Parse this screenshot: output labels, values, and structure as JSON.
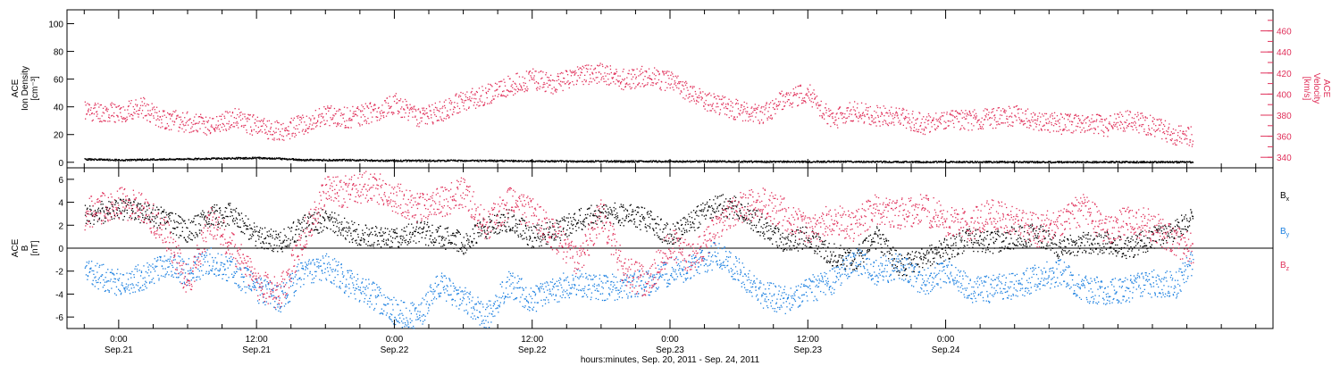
{
  "colors": {
    "density": "#000000",
    "velocity": "#e0305a",
    "bx": "#000000",
    "by": "#1a7fe0",
    "bz": "#e0305a",
    "axis": "#000000"
  },
  "chart_data": [
    {
      "type": "scatter",
      "panel": "top",
      "left_axis": {
        "label_lines": [
          "ACE",
          "Ion Density",
          "[cm⁻³]"
        ],
        "ylim": [
          -4,
          110
        ],
        "ticks": [
          0,
          20,
          40,
          60,
          80,
          100
        ],
        "tick_labels": [
          "0",
          "20",
          "40",
          "60",
          "80",
          "100"
        ]
      },
      "right_axis": {
        "label_lines": [
          "ACE",
          "Velocity",
          "[km/s]"
        ],
        "ylim": [
          330,
          480
        ],
        "ticks": [
          340,
          360,
          380,
          400,
          420,
          440,
          460
        ],
        "tick_labels": [
          "340",
          "360",
          "380",
          "400",
          "420",
          "440",
          "460"
        ]
      },
      "series": [
        {
          "key": "velocity",
          "axis": "right",
          "x": [
            -3,
            0,
            2,
            4,
            6,
            8,
            10,
            12,
            14,
            16,
            18,
            20,
            22,
            24,
            26,
            28,
            30,
            32,
            34,
            36,
            38,
            40,
            42,
            44,
            46,
            48,
            50,
            52,
            54,
            56,
            58,
            60,
            62,
            64,
            66,
            68,
            70,
            72,
            74,
            76,
            78,
            80,
            82,
            84,
            86,
            88,
            90,
            92,
            93.5
          ],
          "y": [
            385,
            382,
            388,
            376,
            374,
            370,
            378,
            370,
            365,
            372,
            380,
            378,
            383,
            392,
            378,
            384,
            394,
            400,
            408,
            415,
            410,
            418,
            420,
            414,
            418,
            412,
            400,
            390,
            385,
            380,
            396,
            402,
            375,
            385,
            380,
            378,
            372,
            376,
            376,
            378,
            380,
            375,
            372,
            374,
            370,
            376,
            370,
            362,
            360
          ]
        },
        {
          "key": "density",
          "axis": "left",
          "x": [
            -3,
            0,
            4,
            8,
            12,
            14,
            16,
            20,
            24,
            28,
            32,
            36,
            40,
            44,
            48,
            52,
            56,
            60,
            64,
            68,
            72,
            76,
            80,
            84,
            88,
            92,
            93.5
          ],
          "y": [
            2.5,
            2.0,
            2.5,
            3.0,
            3.5,
            3.0,
            2.0,
            2.0,
            1.5,
            1.5,
            1.5,
            1.2,
            1.0,
            1.0,
            1.0,
            1.0,
            0.8,
            0.8,
            0.8,
            0.6,
            0.6,
            0.6,
            0.5,
            0.5,
            0.5,
            0.5,
            0.5
          ]
        }
      ]
    },
    {
      "type": "scatter",
      "panel": "bottom",
      "left_axis": {
        "label_lines": [
          "ACE",
          "B",
          "[nT]"
        ],
        "ylim": [
          -7,
          7
        ],
        "ticks": [
          -6,
          -4,
          -2,
          0,
          2,
          4,
          6
        ],
        "tick_labels": [
          "-6",
          "-4",
          "-2",
          "0",
          "2",
          "4",
          "6"
        ]
      },
      "zero_line": true,
      "series": [
        {
          "key": "bx",
          "name": "B",
          "sub": "x",
          "x": [
            -3,
            0,
            2,
            4,
            6,
            8,
            10,
            12,
            14,
            16,
            18,
            20,
            22,
            24,
            26,
            28,
            30,
            32,
            34,
            36,
            38,
            40,
            42,
            44,
            46,
            48,
            50,
            52,
            54,
            56,
            58,
            60,
            62,
            64,
            66,
            68,
            70,
            72,
            74,
            76,
            78,
            80,
            82,
            84,
            86,
            88,
            90,
            92,
            93.5
          ],
          "y": [
            2.8,
            3.5,
            3.2,
            2.5,
            1.5,
            2.8,
            3.0,
            1.0,
            0.5,
            2.0,
            2.5,
            1.5,
            1.0,
            0.8,
            1.5,
            1.0,
            0.5,
            1.8,
            2.5,
            1.0,
            1.5,
            2.5,
            3.0,
            3.0,
            2.5,
            1.0,
            2.5,
            3.8,
            3.5,
            2.0,
            0.5,
            1.0,
            -0.5,
            -1.0,
            1.0,
            -1.5,
            -1.0,
            0.0,
            0.8,
            0.5,
            1.0,
            1.2,
            0.0,
            0.5,
            0.5,
            0.0,
            1.0,
            1.5,
            3.0
          ]
        },
        {
          "key": "by",
          "name": "B",
          "sub": "y",
          "x": [
            -3,
            0,
            2,
            4,
            6,
            8,
            10,
            12,
            14,
            16,
            18,
            20,
            22,
            24,
            26,
            28,
            30,
            32,
            34,
            36,
            38,
            40,
            42,
            44,
            46,
            48,
            50,
            52,
            54,
            56,
            58,
            60,
            62,
            64,
            66,
            68,
            70,
            72,
            74,
            76,
            78,
            80,
            82,
            84,
            86,
            88,
            90,
            92,
            93.5
          ],
          "y": [
            -2.0,
            -3.0,
            -2.5,
            -1.5,
            -2.0,
            -1.0,
            -2.0,
            -3.5,
            -4.5,
            -2.0,
            -1.5,
            -3.0,
            -4.0,
            -5.5,
            -6.0,
            -3.0,
            -4.5,
            -6.0,
            -3.0,
            -4.5,
            -3.5,
            -3.0,
            -3.5,
            -3.2,
            -3.0,
            -2.0,
            -1.5,
            -0.5,
            -2.0,
            -4.0,
            -4.5,
            -3.5,
            -3.0,
            -1.0,
            -2.0,
            -1.5,
            -3.0,
            -2.0,
            -3.5,
            -3.5,
            -3.2,
            -2.5,
            -2.0,
            -3.5,
            -3.8,
            -3.5,
            -3.0,
            -3.2,
            -1.0
          ]
        },
        {
          "key": "bz",
          "name": "B",
          "sub": "z",
          "x": [
            -3,
            0,
            2,
            4,
            6,
            8,
            10,
            12,
            14,
            16,
            18,
            20,
            22,
            24,
            26,
            28,
            30,
            32,
            34,
            36,
            38,
            40,
            42,
            44,
            46,
            48,
            50,
            52,
            54,
            56,
            58,
            60,
            62,
            64,
            66,
            68,
            70,
            72,
            74,
            76,
            78,
            80,
            82,
            84,
            86,
            88,
            90,
            92,
            93.5
          ],
          "y": [
            3.0,
            4.0,
            3.5,
            1.5,
            -3.0,
            2.5,
            0.0,
            -3.0,
            -4.0,
            1.0,
            5.0,
            5.0,
            5.5,
            4.5,
            3.5,
            4.0,
            5.0,
            2.0,
            4.0,
            3.0,
            1.0,
            -1.0,
            3.0,
            -2.0,
            -3.0,
            0.5,
            -1.0,
            2.0,
            3.5,
            4.0,
            3.0,
            1.5,
            2.5,
            2.0,
            3.5,
            3.0,
            3.5,
            2.5,
            2.0,
            3.0,
            2.5,
            1.5,
            2.5,
            3.5,
            1.5,
            2.5,
            2.0,
            0.5,
            0.0
          ]
        }
      ],
      "legend": [
        {
          "key": "bx",
          "label": "B",
          "sub": "x"
        },
        {
          "key": "by",
          "label": "B",
          "sub": "y"
        },
        {
          "key": "bz",
          "label": "B",
          "sub": "z"
        }
      ]
    }
  ],
  "time_axis": {
    "xlim": [
      -4.5,
      100.5
    ],
    "major_ticks": [
      {
        "h": 0,
        "time": "0:00",
        "date": "Sep.21"
      },
      {
        "h": 12,
        "time": "12:00",
        "date": "Sep.21"
      },
      {
        "h": 24,
        "time": "0:00",
        "date": "Sep.22"
      },
      {
        "h": 36,
        "time": "12:00",
        "date": "Sep.22"
      },
      {
        "h": 48,
        "time": "0:00",
        "date": "Sep.23"
      },
      {
        "h": 60,
        "time": "12:00",
        "date": "Sep.23"
      },
      {
        "h": 72,
        "time": "0:00",
        "date": "Sep.24"
      }
    ],
    "title": "hours:minutes, Sep. 20, 2011 - Sep. 24, 2011"
  }
}
